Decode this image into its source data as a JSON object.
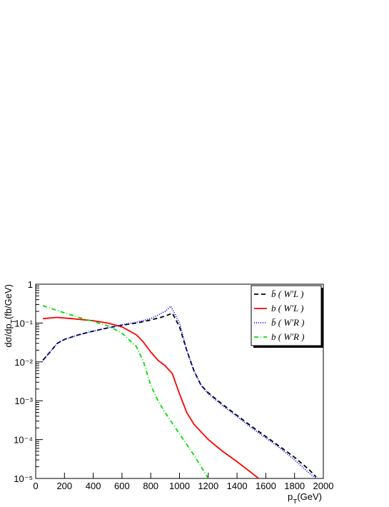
{
  "chart_data": {
    "type": "line",
    "x_label": [
      "p",
      "T",
      "(GeV)"
    ],
    "y_label": [
      "dσ/dp",
      "T",
      "(fb/GeV)"
    ],
    "log_y": true,
    "legend": "top-right",
    "xlim": [
      0,
      2000
    ],
    "xticks": [
      0,
      200,
      400,
      600,
      800,
      1000,
      1200,
      1400,
      1600,
      1800,
      2000
    ],
    "ylim": [
      1e-05,
      1
    ],
    "yticks": [
      {
        "value": 1e-05,
        "label": "10⁻⁵"
      },
      {
        "value": 0.0001,
        "label": "10⁻⁴"
      },
      {
        "value": 0.001,
        "label": "10⁻³"
      },
      {
        "value": 0.01,
        "label": "10⁻²"
      },
      {
        "value": 0.1,
        "label": "10⁻¹"
      },
      1
    ],
    "series": [
      {
        "name": "b̄ ( W'L )",
        "color": "#000000",
        "dash": "6,4",
        "x": [
          50,
          100,
          150,
          200,
          300,
          400,
          500,
          600,
          700,
          800,
          900,
          950,
          1000,
          1050,
          1100,
          1150,
          1200,
          1300,
          1400,
          1500,
          1600,
          1700,
          1800,
          1900,
          1950
        ],
        "values": [
          0.011,
          0.018,
          0.03,
          0.038,
          0.05,
          0.062,
          0.075,
          0.088,
          0.1,
          0.12,
          0.15,
          0.18,
          0.08,
          0.02,
          0.006,
          0.0025,
          0.0016,
          0.0008,
          0.00042,
          0.00022,
          0.00012,
          6.5e-05,
          3.5e-05,
          1.7e-05,
          1.1e-05
        ]
      },
      {
        "name": "b ( W'L )",
        "color": "#ff0000",
        "dash": "none",
        "x": [
          50,
          150,
          250,
          400,
          500,
          600,
          700,
          750,
          800,
          850,
          900,
          950,
          1000,
          1050,
          1100,
          1200,
          1300,
          1400,
          1500,
          1550
        ],
        "values": [
          0.13,
          0.14,
          0.13,
          0.115,
          0.1,
          0.08,
          0.05,
          0.032,
          0.018,
          0.011,
          0.008,
          0.005,
          0.0015,
          0.0005,
          0.00025,
          0.0001,
          5e-05,
          2.7e-05,
          1.4e-05,
          1e-05
        ]
      },
      {
        "name": "b̄ ( W'R )",
        "color": "#0000ff",
        "dash": "1,2",
        "x": [
          50,
          100,
          150,
          200,
          300,
          400,
          500,
          600,
          700,
          800,
          850,
          900,
          940,
          1000,
          1050,
          1100,
          1150,
          1200,
          1300,
          1400,
          1500,
          1600,
          1700,
          1800,
          1900,
          1950
        ],
        "values": [
          0.011,
          0.018,
          0.03,
          0.038,
          0.05,
          0.062,
          0.075,
          0.09,
          0.105,
          0.13,
          0.16,
          0.2,
          0.27,
          0.1,
          0.02,
          0.006,
          0.0025,
          0.0015,
          0.00075,
          0.00039,
          0.0002,
          0.00011,
          6e-05,
          3e-05,
          1.4e-05,
          1e-05
        ]
      },
      {
        "name": "b ( W'R )",
        "color": "#00dd00",
        "dash": "6,3,1,3",
        "x": [
          50,
          150,
          300,
          400,
          500,
          600,
          700,
          750,
          800,
          850,
          900,
          1000,
          1100,
          1150,
          1200
        ],
        "values": [
          0.28,
          0.21,
          0.14,
          0.11,
          0.085,
          0.055,
          0.025,
          0.01,
          0.0025,
          0.001,
          0.0005,
          0.00014,
          4e-05,
          2e-05,
          1e-05
        ]
      }
    ]
  }
}
